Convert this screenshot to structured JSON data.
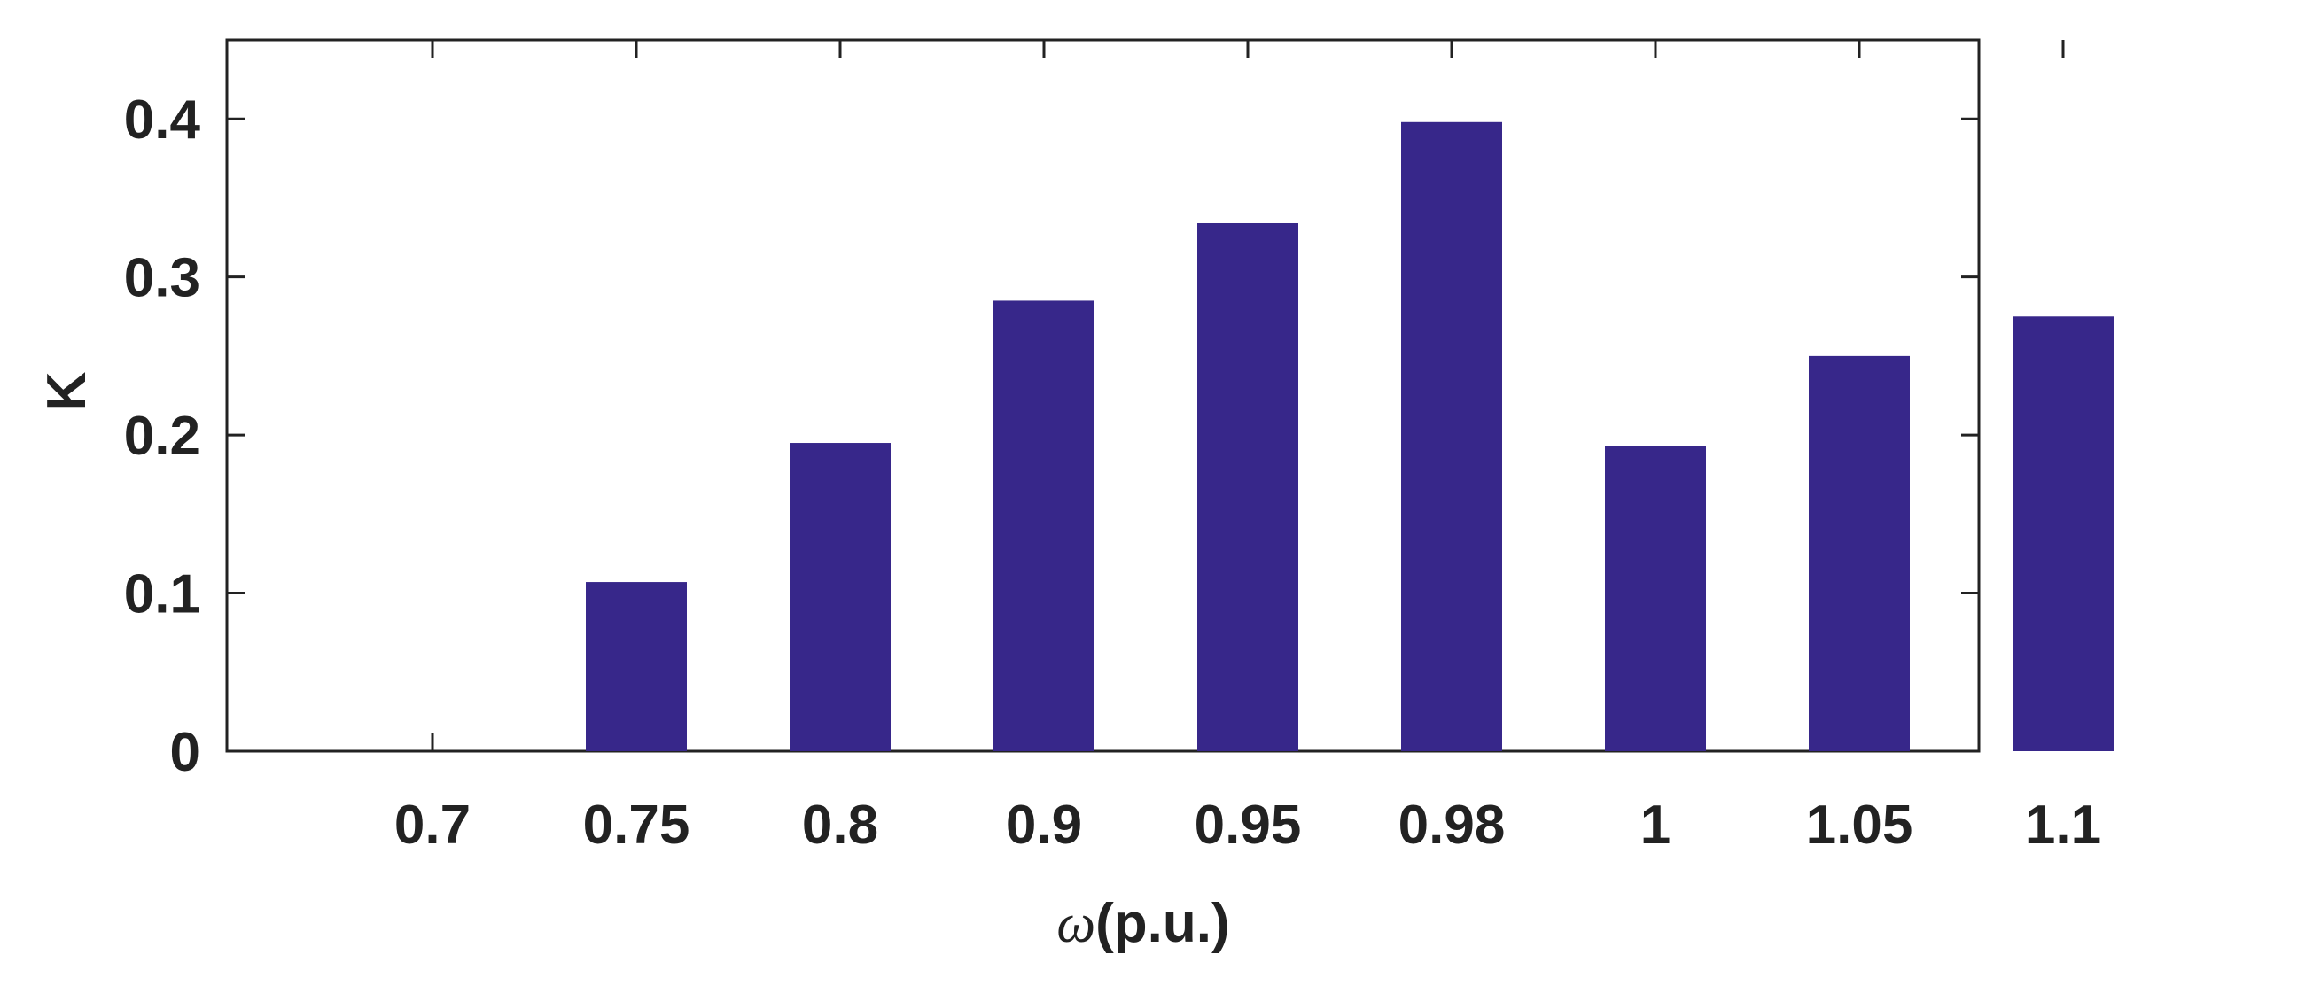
{
  "chart_data": {
    "type": "bar",
    "title": "",
    "categories": [
      "0.7",
      "0.75",
      "0.8",
      "0.9",
      "0.95",
      "0.98",
      "1",
      "1.05",
      "1.1"
    ],
    "values": [
      0,
      0.107,
      0.195,
      0.285,
      0.334,
      0.398,
      0.193,
      0.25,
      0.275
    ],
    "xlabel": {
      "symbol": "ω",
      "text": "(p.u.)"
    },
    "ylabel": "K",
    "ylim": [
      0,
      0.45
    ],
    "yticks": [
      "0",
      "0.1",
      "0.2",
      "0.3",
      "0.4"
    ],
    "grid": false,
    "bar_color": "#37278a",
    "axis_color": "#222222"
  }
}
